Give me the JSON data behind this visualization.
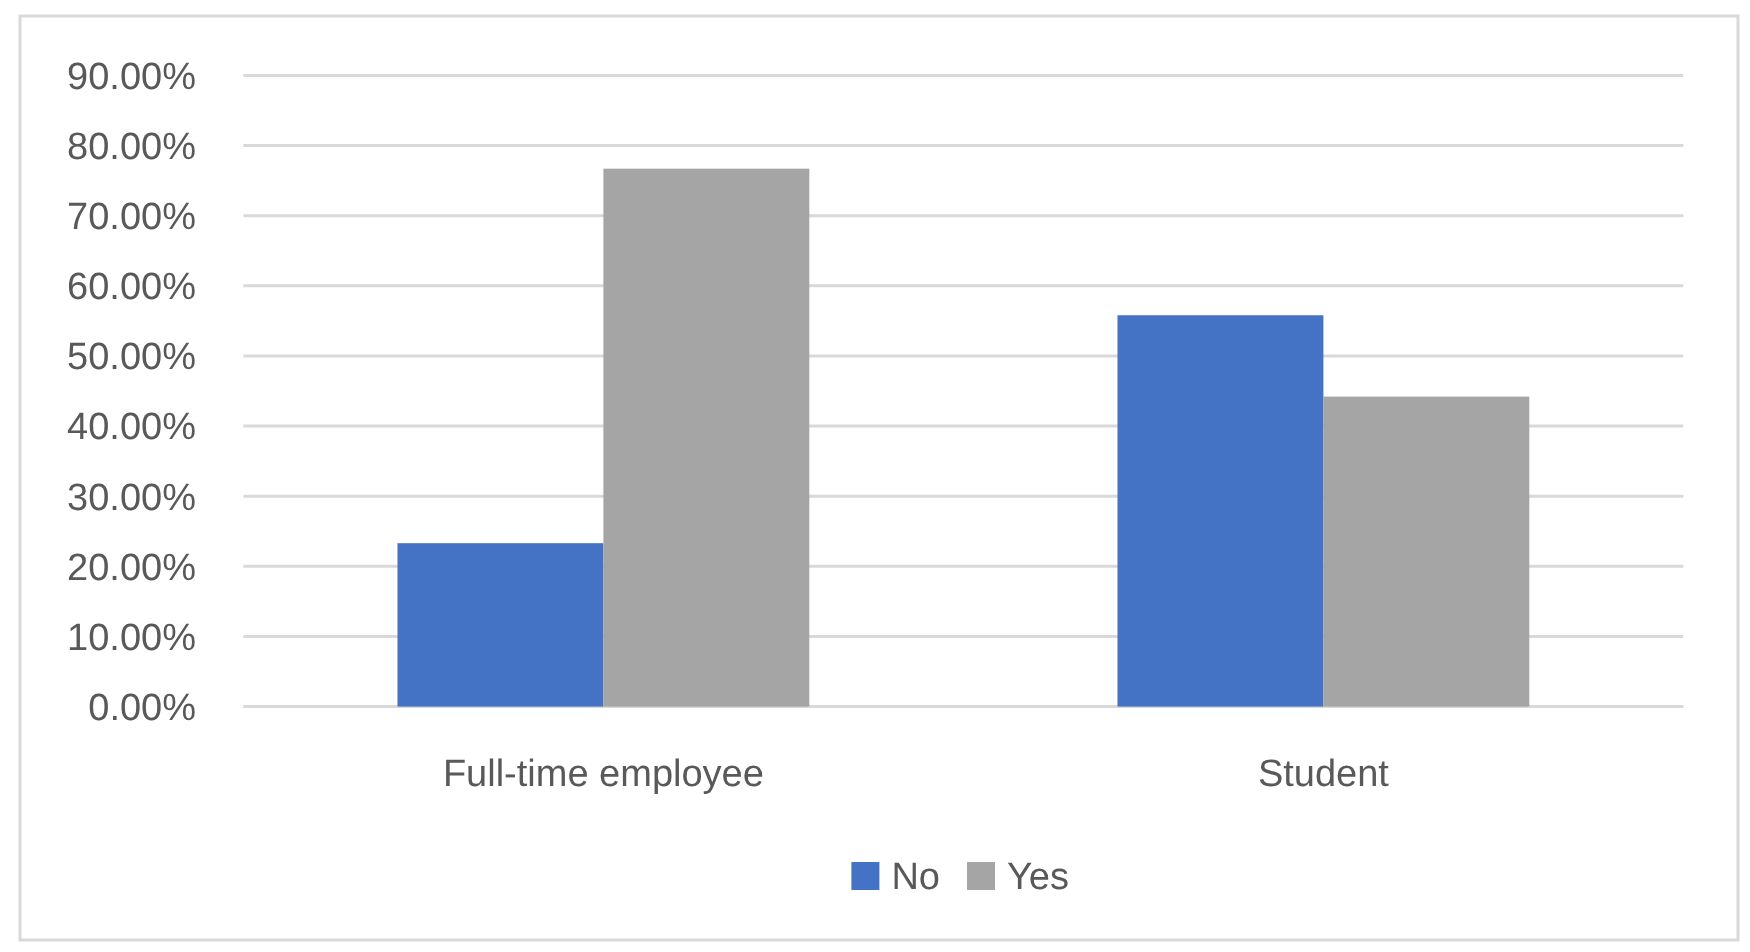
{
  "chart_data": {
    "type": "bar",
    "categories": [
      "Full-time employee",
      "Student"
    ],
    "series": [
      {
        "name": "No",
        "color": "#4472c4",
        "values": [
          23.3,
          55.8
        ]
      },
      {
        "name": "Yes",
        "color": "#a5a5a5",
        "values": [
          76.7,
          44.2
        ]
      }
    ],
    "ylim": [
      0,
      90
    ],
    "yticks": [
      {
        "value": 0,
        "label": "0.00%"
      },
      {
        "value": 10,
        "label": "10.00%"
      },
      {
        "value": 20,
        "label": "20.00%"
      },
      {
        "value": 30,
        "label": "30.00%"
      },
      {
        "value": 40,
        "label": "40.00%"
      },
      {
        "value": 50,
        "label": "50.00%"
      },
      {
        "value": 60,
        "label": "60.00%"
      },
      {
        "value": 70,
        "label": "70.00%"
      },
      {
        "value": 80,
        "label": "80.00%"
      },
      {
        "value": 90,
        "label": "90.00%"
      }
    ],
    "grid": "y",
    "legend": "bottom"
  }
}
